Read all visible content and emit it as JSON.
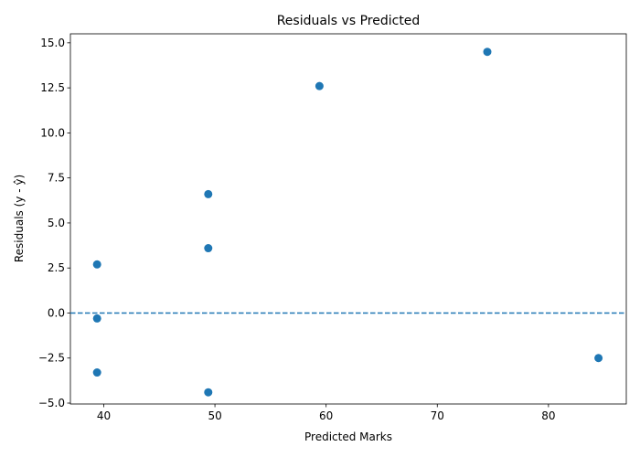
{
  "chart_data": {
    "type": "scatter",
    "title": "Residuals vs Predicted",
    "xlabel": "Predicted Marks",
    "ylabel": "Residuals (y - ŷ)",
    "xlim": [
      37,
      87
    ],
    "ylim": [
      -5.05,
      15.5
    ],
    "x_ticks": [
      40,
      50,
      60,
      70,
      80
    ],
    "x_tick_labels": [
      "40",
      "50",
      "60",
      "70",
      "80"
    ],
    "y_ticks": [
      -5.0,
      -2.5,
      0.0,
      2.5,
      5.0,
      7.5,
      10.0,
      12.5,
      15.0
    ],
    "y_tick_labels": [
      "−5.0",
      "−2.5",
      "0.0",
      "2.5",
      "5.0",
      "7.5",
      "10.0",
      "12.5",
      "15.0"
    ],
    "grid": false,
    "series": [
      {
        "color": "#1f77b4",
        "points": [
          {
            "x": 39.4,
            "y": 2.7
          },
          {
            "x": 39.4,
            "y": -0.3
          },
          {
            "x": 39.4,
            "y": -3.3
          },
          {
            "x": 49.4,
            "y": 6.6
          },
          {
            "x": 49.4,
            "y": 3.6
          },
          {
            "x": 49.4,
            "y": -4.4
          },
          {
            "x": 59.4,
            "y": 12.6
          },
          {
            "x": 74.5,
            "y": 14.5
          },
          {
            "x": 84.5,
            "y": -2.5
          }
        ]
      }
    ],
    "reference_line": {
      "y": 0,
      "style": "dashed",
      "color": "#1f77b4"
    }
  }
}
